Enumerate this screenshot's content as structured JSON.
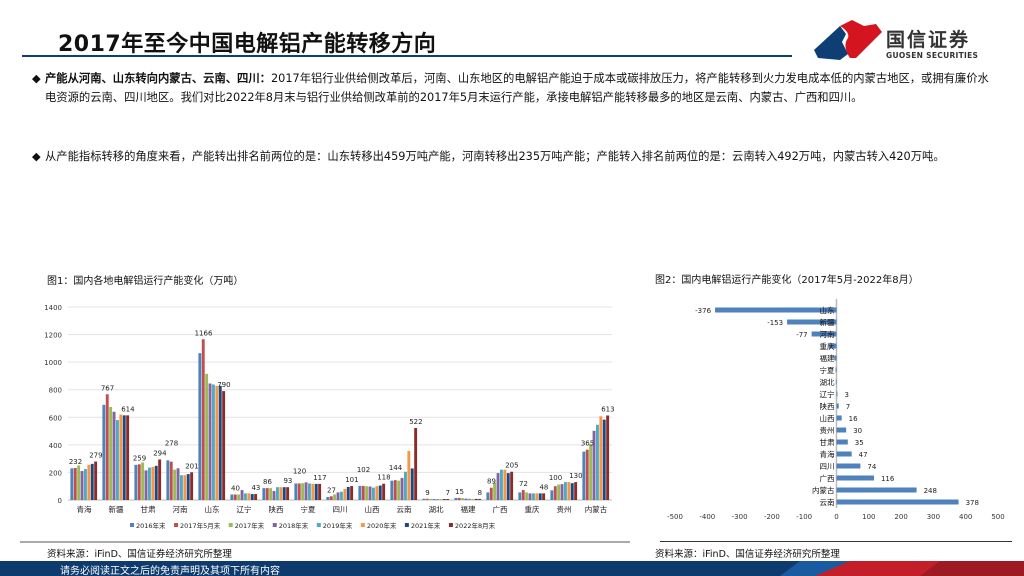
{
  "header": {
    "title": "2017年至今中国电解铝产能转移方向"
  },
  "logo": {
    "cn": "国信证券",
    "en": "GUOSEN SECURITIES",
    "colors": {
      "blue": "#0d3f75",
      "red": "#d4141f"
    }
  },
  "bullets": [
    {
      "bold": "产能从河南、山东转向内蒙古、云南、四川：",
      "text": "2017年铝行业供给侧改革后，河南、山东地区的电解铝产能迫于成本或碳排放压力，将产能转移到火力发电成本低的内蒙古地区，或拥有廉价水电资源的云南、四川地区。我们对比2022年8月末与铝行业供给侧改革前的2017年5月末运行产能，承接电解铝产能转移最多的地区是云南、内蒙古、广西和四川。"
    },
    {
      "bold": "",
      "text": "从产能指标转移的角度来看，产能转出排名前两位的是：山东转移出459万吨产能，河南转移出235万吨产能；产能转入排名前两位的是：云南转入492万吨，内蒙古转入420万吨。"
    }
  ],
  "bullet_glyph": "◆",
  "chart_data": [
    {
      "type": "bar",
      "title": "图1：国内各地电解铝运行产能变化（万吨）",
      "ylim": [
        0,
        1400
      ],
      "yticks": [
        0,
        200,
        400,
        600,
        800,
        1000,
        1200,
        1400
      ],
      "grid": true,
      "legend": "bottom",
      "categories": [
        "青海",
        "新疆",
        "甘肃",
        "河南",
        "山东",
        "辽宁",
        "陕西",
        "宁夏",
        "四川",
        "山西",
        "云南",
        "湖北",
        "福建",
        "广西",
        "重庆",
        "贵州",
        "内蒙古"
      ],
      "series": [
        {
          "name": "2016年末",
          "color": "#4f81bd",
          "values": [
            230,
            690,
            255,
            288,
            1065,
            40,
            86,
            120,
            22,
            102,
            140,
            9,
            15,
            55,
            55,
            70,
            351
          ]
        },
        {
          "name": "2017年5月末",
          "color": "#c0504d",
          "values": [
            232,
            767,
            259,
            278,
            1166,
            40,
            86,
            120,
            27,
            102,
            144,
            9,
            15,
            89,
            72,
            100,
            365
          ]
        },
        {
          "name": "2017年末",
          "color": "#9bbb59",
          "values": [
            250,
            675,
            272,
            220,
            915,
            40,
            86,
            122,
            40,
            100,
            140,
            8,
            14,
            125,
            55,
            112,
            405
          ]
        },
        {
          "name": "2018年末",
          "color": "#8064a2",
          "values": [
            210,
            640,
            215,
            230,
            845,
            72,
            65,
            128,
            55,
            98,
            160,
            7,
            10,
            195,
            48,
            115,
            502
          ]
        },
        {
          "name": "2019年末",
          "color": "#4bacc6",
          "values": [
            225,
            580,
            235,
            180,
            838,
            48,
            93,
            120,
            60,
            90,
            205,
            7,
            9,
            220,
            48,
            130,
            546
          ]
        },
        {
          "name": "2020年末",
          "color": "#f79646",
          "values": [
            255,
            620,
            240,
            180,
            828,
            48,
            93,
            117,
            80,
            100,
            356,
            7,
            8,
            220,
            48,
            130,
            607
          ]
        },
        {
          "name": "2021年末",
          "color": "#1f497d",
          "values": [
            262,
            614,
            248,
            188,
            828,
            43,
            93,
            117,
            95,
            105,
            229,
            7,
            8,
            195,
            48,
            122,
            583
          ]
        },
        {
          "name": "2022年8月末",
          "color": "#8b2b2b",
          "values": [
            279,
            614,
            294,
            201,
            790,
            43,
            93,
            117,
            101,
            118,
            522,
            7,
            8,
            205,
            48,
            130,
            613
          ]
        }
      ],
      "data_labels": {
        "2017年5月末": [
          232,
          767,
          259,
          278,
          1166,
          40,
          86,
          120,
          27,
          102,
          144,
          9,
          15,
          89,
          72,
          100,
          365
        ],
        "2022年8月末": [
          279,
          614,
          294,
          201,
          790,
          43,
          93,
          117,
          101,
          118,
          522,
          7,
          8,
          205,
          48,
          130,
          613
        ]
      },
      "source": "资料来源：iFinD、国信证券经济研究所整理"
    },
    {
      "type": "bar",
      "orientation": "horizontal",
      "title": "图2：国内电解铝运行产能变化（2017年5月-2022年8月）",
      "xlim": [
        -500,
        500
      ],
      "xticks": [
        -500,
        -400,
        -300,
        -200,
        -100,
        0,
        100,
        200,
        300,
        400,
        500
      ],
      "grid": false,
      "color": "#4f81bd",
      "categories": [
        "山东",
        "新疆",
        "河南",
        "重庆",
        "福建",
        "宁夏",
        "湖北",
        "辽宁",
        "陕西",
        "山西",
        "贵州",
        "甘肃",
        "青海",
        "四川",
        "广西",
        "内蒙古",
        "云南"
      ],
      "values": [
        -376,
        -153,
        -77,
        -24,
        -7,
        -3,
        -2,
        3,
        7,
        16,
        30,
        35,
        47,
        74,
        116,
        248,
        378
      ],
      "source": "资料来源：iFinD、国信证券经济研究所整理"
    }
  ],
  "footer": {
    "disclaimer": "请务必阅读正文之后的免责声明及其项下所有内容"
  }
}
